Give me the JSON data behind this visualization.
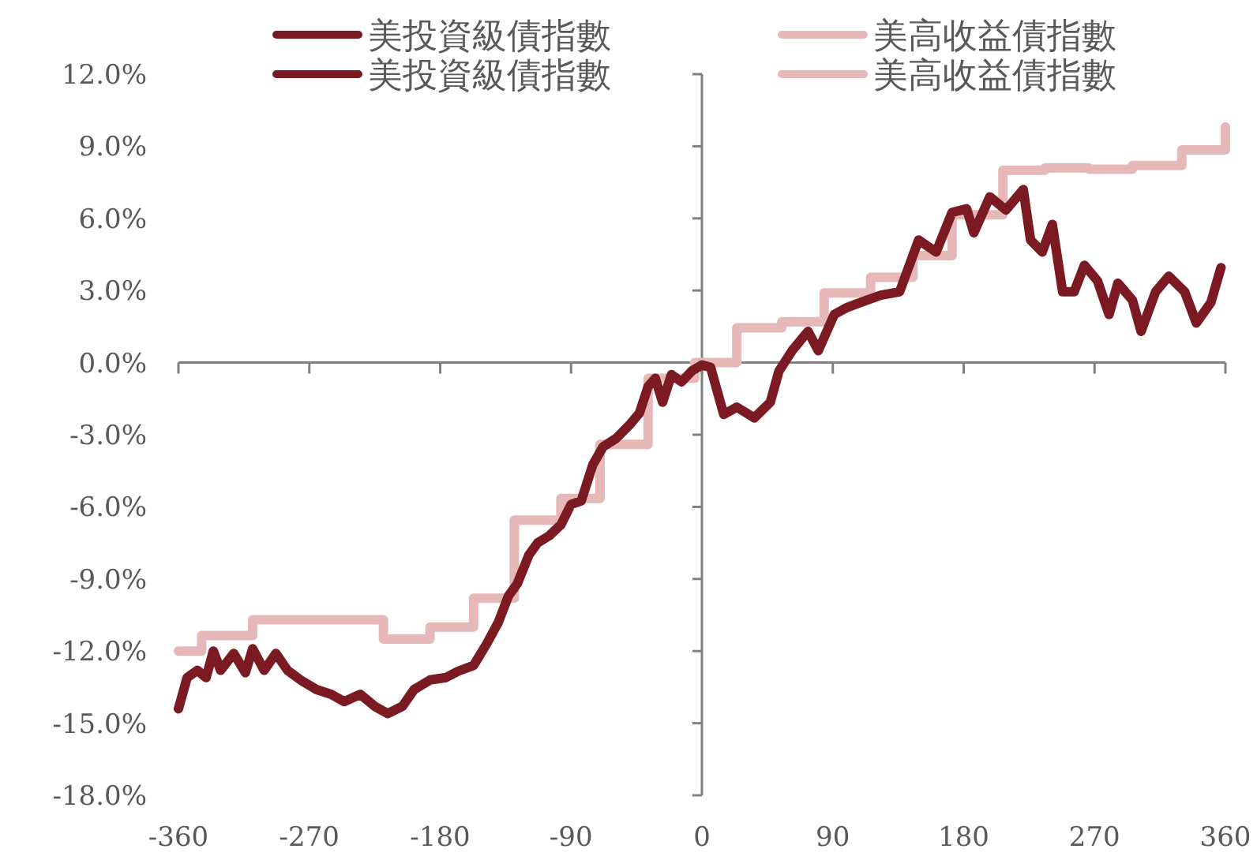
{
  "chart_data": {
    "type": "line",
    "xlim": [
      -360,
      360
    ],
    "xticks": [
      -360,
      -270,
      -180,
      -90,
      0,
      90,
      180,
      270,
      360
    ],
    "ylim": [
      -18,
      12
    ],
    "yticks": [
      {
        "value": 12,
        "label": "12.0%"
      },
      {
        "value": 9,
        "label": "9.0%"
      },
      {
        "value": 6,
        "label": "6.0%"
      },
      {
        "value": 3,
        "label": "3.0%"
      },
      {
        "value": 0,
        "label": "0.0%"
      },
      {
        "value": -3,
        "label": "-3.0%"
      },
      {
        "value": -6,
        "label": "-6.0%"
      },
      {
        "value": -9,
        "label": "-9.0%"
      },
      {
        "value": -12,
        "label": "-12.0%"
      },
      {
        "value": -15,
        "label": "-15.0%"
      },
      {
        "value": -18,
        "label": "-18.0%"
      }
    ],
    "legend": "top",
    "series": [
      {
        "name": "美投資級債指數",
        "color": "#7b1a22",
        "x": [
          -360,
          -354,
          -347,
          -341,
          -336,
          -331,
          -322,
          -314,
          -309,
          -301,
          -293,
          -285,
          -276,
          -265,
          -255,
          -246,
          -235,
          -225,
          -216,
          -206,
          -198,
          -187,
          -176,
          -168,
          -157,
          -148,
          -140,
          -133,
          -127,
          -119,
          -113,
          -105,
          -97,
          -90,
          -83,
          -75,
          -68,
          -59,
          -50,
          -43,
          -37,
          -32,
          -27,
          -21,
          -14,
          -7,
          0,
          6,
          15,
          24,
          36,
          47,
          53,
          62,
          73,
          80,
          91,
          100,
          109,
          123,
          136,
          149,
          161,
          172,
          182,
          187,
          198,
          209,
          221,
          226,
          234,
          241,
          248,
          256,
          263,
          272,
          280,
          286,
          296,
          302,
          312,
          321,
          332,
          340,
          350,
          357
        ],
        "values": [
          -14.4,
          -13.1,
          -12.8,
          -13.1,
          -12.0,
          -12.8,
          -12.1,
          -12.9,
          -11.9,
          -12.8,
          -12.1,
          -12.8,
          -13.2,
          -13.6,
          -13.8,
          -14.1,
          -13.8,
          -14.3,
          -14.6,
          -14.3,
          -13.6,
          -13.2,
          -13.1,
          -12.85,
          -12.6,
          -11.7,
          -10.8,
          -9.7,
          -9.2,
          -8.0,
          -7.5,
          -7.2,
          -6.75,
          -5.9,
          -5.75,
          -4.25,
          -3.5,
          -3.15,
          -2.6,
          -2.1,
          -1.0,
          -0.65,
          -1.65,
          -0.5,
          -0.8,
          -0.35,
          -0.1,
          -0.2,
          -2.15,
          -1.85,
          -2.3,
          -1.65,
          -0.35,
          0.5,
          1.3,
          0.5,
          2.0,
          2.3,
          2.5,
          2.8,
          2.95,
          5.1,
          4.6,
          6.25,
          6.4,
          5.4,
          6.9,
          6.35,
          7.2,
          5.1,
          4.6,
          5.75,
          2.95,
          2.95,
          4.05,
          3.4,
          2.0,
          3.3,
          2.6,
          1.3,
          2.95,
          3.6,
          2.95,
          1.65,
          2.5,
          3.95
        ]
      },
      {
        "name": "美高收益債指數",
        "color": "#e6b8b8",
        "type": "step",
        "x": [
          -360,
          -344,
          -309,
          -219,
          -187,
          -157,
          -129,
          -97,
          -70,
          -37,
          -5,
          24,
          55,
          84,
          116,
          145,
          172,
          207,
          236,
          266,
          296,
          330,
          358,
          360
        ],
        "values": [
          -12.0,
          -11.35,
          -10.7,
          -11.5,
          -11.0,
          -9.8,
          -6.55,
          -5.65,
          -3.4,
          -0.65,
          0.0,
          1.45,
          1.7,
          2.9,
          3.55,
          4.45,
          6.15,
          8.0,
          8.1,
          8.05,
          8.2,
          8.85,
          8.85,
          9.8
        ]
      }
    ]
  }
}
